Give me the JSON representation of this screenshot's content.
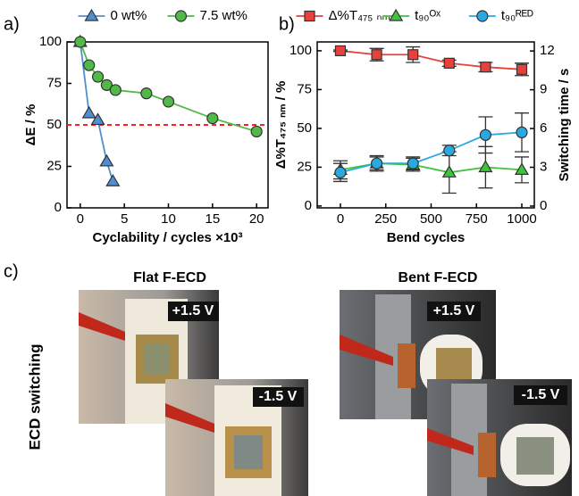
{
  "chart_data": [
    {
      "type": "line",
      "label": "a)",
      "xlabel": "Cyclability / cycles ×10³",
      "ylabel": "ΔE / %",
      "xlim": [
        -1.5,
        21.3
      ],
      "xticks": [
        0,
        5,
        10,
        15,
        20
      ],
      "ylim": [
        0,
        100
      ],
      "yticks": [
        0,
        25,
        50,
        75,
        100
      ],
      "legend": "top",
      "reference_line": {
        "value": 50,
        "color": "#ff2020"
      },
      "series": [
        {
          "name": "0 wt%",
          "color": "#4f8fd0",
          "marker": "triangle",
          "x": [
            0,
            1,
            2,
            3,
            3.7
          ],
          "values": [
            100,
            57,
            53,
            28,
            16
          ]
        },
        {
          "name": "7.5 wt%",
          "color": "#52b848",
          "marker": "circle",
          "x": [
            0,
            1,
            2,
            3,
            4,
            7.5,
            10,
            15,
            20
          ],
          "values": [
            100,
            86,
            79,
            74,
            71,
            69,
            64,
            54,
            46
          ]
        }
      ]
    },
    {
      "type": "line",
      "label": "b)",
      "xlabel": "Bend cycles",
      "ylabel": "Δ%T₄₇₅ ₙₘ / %",
      "y2label": "Switching time / s",
      "x": [
        0,
        200,
        400,
        600,
        800,
        1000
      ],
      "xlim": [
        -128,
        1069
      ],
      "xticks": [
        0,
        250,
        500,
        750,
        1000
      ],
      "ylim": [
        -1.2,
        105.7
      ],
      "yticks": [
        0,
        25,
        50,
        75,
        100
      ],
      "y2lim": [
        -0.14,
        12.7
      ],
      "y2ticks": [
        0,
        3,
        6,
        9,
        12
      ],
      "legend": "top",
      "series": [
        {
          "name": "Δ%T₄₇₅ ₙₘ",
          "color": "#e8413c",
          "marker": "square",
          "values": [
            100,
            97.5,
            97.5,
            92,
            89.5,
            88
          ],
          "errors": [
            0.5,
            4,
            5,
            2,
            3,
            4
          ]
        },
        {
          "name": "t₉₀ᴼˣ",
          "color": "#3ec43a",
          "marker": "triangle",
          "axis": "y2",
          "values": [
            2.8,
            3.3,
            3.2,
            2.6,
            3.0,
            2.8
          ],
          "errors": [
            0.7,
            0.6,
            0.5,
            1.6,
            1.6,
            1.0
          ]
        },
        {
          "name": "t₉₀ᴿᴱᴰ",
          "color": "#2aa8e0",
          "marker": "circle",
          "axis": "y2",
          "values": [
            2.6,
            3.3,
            3.3,
            4.3,
            5.5,
            5.7
          ],
          "errors": [
            0.7,
            0.5,
            0.5,
            0.4,
            1.4,
            1.5
          ]
        }
      ]
    }
  ],
  "panel_c": {
    "label": "c)",
    "side_label": "ECD switching",
    "flat_title": "Flat F-ECD",
    "bent_title": "Bent F-ECD",
    "flat_top_voltage": "+1.5 V",
    "flat_bottom_voltage": "-1.5 V",
    "bent_top_voltage": "+1.5 V",
    "bent_bottom_voltage": "-1.5 V"
  }
}
